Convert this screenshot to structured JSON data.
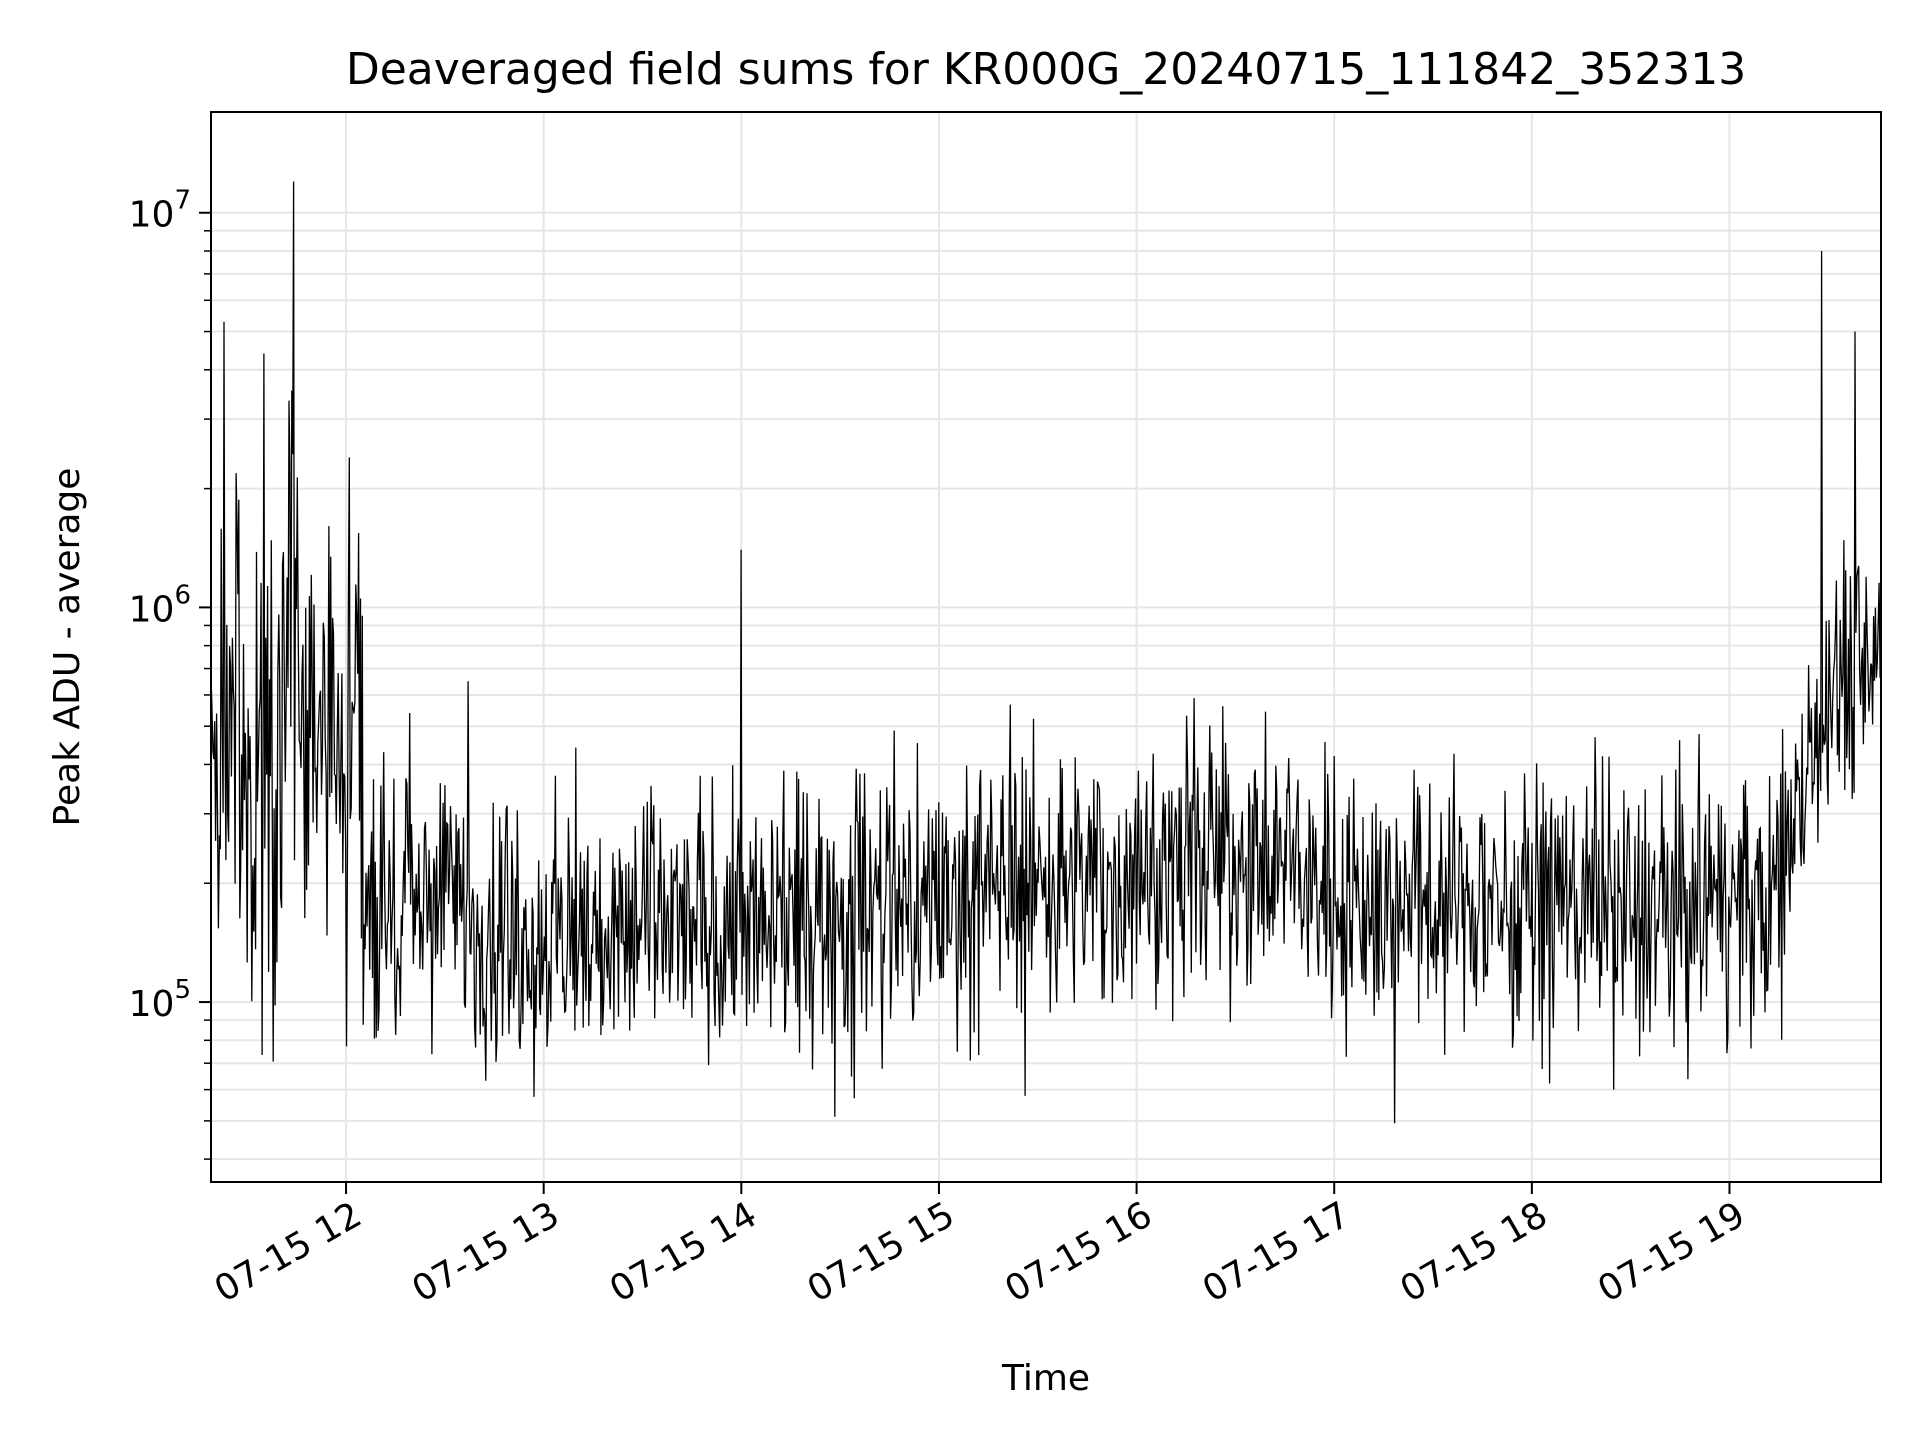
{
  "chart_data": {
    "type": "line",
    "title": "Deaveraged field sums for KR000G_20240715_111842_352313",
    "xlabel": "Time",
    "ylabel": "Peak ADU - average",
    "yscale": "log",
    "ylim": [
      35000,
      18000000
    ],
    "xlim": [
      "2024-07-15 11:19",
      "2024-07-15 19:46"
    ],
    "grid": true,
    "x_tick_labels": [
      "07-15 12",
      "07-15 13",
      "07-15 14",
      "07-15 15",
      "07-15 16",
      "07-15 17",
      "07-15 18",
      "07-15 19"
    ],
    "y_tick_labels": [
      {
        "base": "10",
        "exp": "5"
      },
      {
        "base": "10",
        "exp": "6"
      },
      {
        "base": "10",
        "exp": "7"
      }
    ],
    "series": [
      {
        "color": "#000000",
        "x": [
          "2024-07-15 11:19",
          "2024-07-15 11:23",
          "2024-07-15 11:27",
          "2024-07-15 11:31",
          "2024-07-15 11:35",
          "2024-07-15 11:39",
          "2024-07-15 11:43",
          "2024-07-15 11:47",
          "2024-07-15 11:51",
          "2024-07-15 11:55",
          "2024-07-15 11:59",
          "2024-07-15 12:03",
          "2024-07-15 12:06",
          "2024-07-15 12:10",
          "2024-07-15 12:20",
          "2024-07-15 12:30",
          "2024-07-15 12:40",
          "2024-07-15 12:50",
          "2024-07-15 13:00",
          "2024-07-15 13:10",
          "2024-07-15 13:20",
          "2024-07-15 13:30",
          "2024-07-15 13:40",
          "2024-07-15 13:50",
          "2024-07-15 14:00",
          "2024-07-15 14:10",
          "2024-07-15 14:20",
          "2024-07-15 14:30",
          "2024-07-15 14:40",
          "2024-07-15 14:50",
          "2024-07-15 15:00",
          "2024-07-15 15:10",
          "2024-07-15 15:20",
          "2024-07-15 15:30",
          "2024-07-15 15:40",
          "2024-07-15 15:50",
          "2024-07-15 16:00",
          "2024-07-15 16:10",
          "2024-07-15 16:20",
          "2024-07-15 16:30",
          "2024-07-15 16:40",
          "2024-07-15 16:50",
          "2024-07-15 17:00",
          "2024-07-15 17:10",
          "2024-07-15 17:20",
          "2024-07-15 17:30",
          "2024-07-15 17:40",
          "2024-07-15 17:50",
          "2024-07-15 18:00",
          "2024-07-15 18:10",
          "2024-07-15 18:20",
          "2024-07-15 18:30",
          "2024-07-15 18:40",
          "2024-07-15 18:50",
          "2024-07-15 19:00",
          "2024-07-15 19:10",
          "2024-07-15 19:15",
          "2024-07-15 19:20",
          "2024-07-15 19:25",
          "2024-07-15 19:30",
          "2024-07-15 19:35",
          "2024-07-15 19:40",
          "2024-07-15 19:46"
        ],
        "y": [
          450000,
          380000,
          520000,
          400000,
          300000,
          280000,
          1200000,
          550000,
          350000,
          600000,
          300000,
          700000,
          200000,
          180000,
          170000,
          180000,
          160000,
          150000,
          140000,
          150000,
          140000,
          160000,
          150000,
          160000,
          155000,
          150000,
          160000,
          170000,
          170000,
          180000,
          185000,
          190000,
          200000,
          205000,
          200000,
          200000,
          205000,
          210000,
          230000,
          240000,
          220000,
          220000,
          200000,
          185000,
          180000,
          180000,
          175000,
          180000,
          185000,
          180000,
          180000,
          170000,
          175000,
          175000,
          180000,
          180000,
          200000,
          350000,
          480000,
          650000,
          700000,
          750000,
          780000
        ],
        "spikes": [
          {
            "x": "2024-07-15 11:23",
            "y": 5300000
          },
          {
            "x": "2024-07-15 11:35",
            "y": 4400000
          },
          {
            "x": "2024-07-15 11:44",
            "y": 12000000
          },
          {
            "x": "2024-07-15 12:01",
            "y": 2400000
          },
          {
            "x": "2024-07-15 12:37",
            "y": 650000
          },
          {
            "x": "2024-07-15 14:00",
            "y": 1400000
          },
          {
            "x": "2024-07-15 19:28",
            "y": 8000000
          },
          {
            "x": "2024-07-15 19:38",
            "y": 5000000
          }
        ]
      }
    ]
  }
}
